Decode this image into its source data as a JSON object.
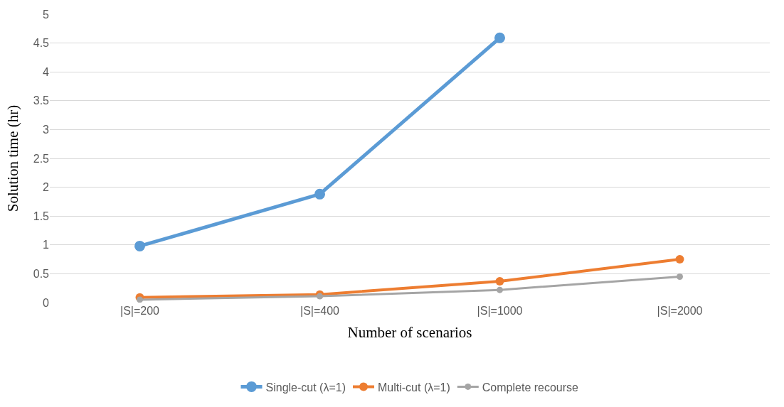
{
  "chart_data": {
    "type": "line",
    "xlabel": "Number of scenarios",
    "ylabel": "Solution time (hr)",
    "categories": [
      "|S|=200",
      "|S|=400",
      "|S|=1000",
      "|S|=2000"
    ],
    "series": [
      {
        "name": "Single-cut (λ=1)",
        "color": "#5b9bd5",
        "values": [
          0.98,
          1.88,
          4.59,
          null
        ]
      },
      {
        "name": "Multi-cut (λ=1)",
        "color": "#ed7d31",
        "values": [
          0.09,
          0.14,
          0.37,
          0.75
        ]
      },
      {
        "name": "Complete recourse",
        "color": "#a5a5a5",
        "values": [
          0.05,
          0.11,
          0.22,
          0.45
        ]
      }
    ],
    "ylim": [
      0,
      5
    ],
    "yticks": [
      0,
      0.5,
      1,
      1.5,
      2,
      2.5,
      3,
      3.5,
      4,
      4.5,
      5
    ],
    "grid": "y",
    "legend": "bottom",
    "marker": "circle",
    "line_style": "solid"
  }
}
